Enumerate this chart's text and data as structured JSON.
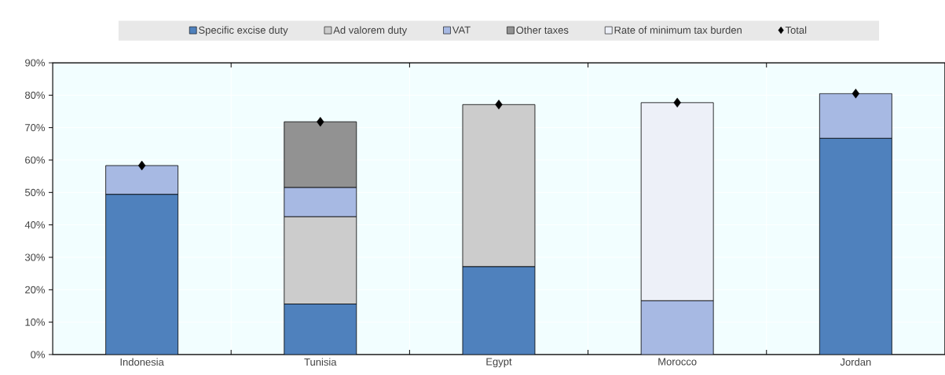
{
  "chart_data": {
    "type": "bar",
    "stacked": true,
    "categories": [
      "Indonesia",
      "Tunisia",
      "Egypt",
      "Morocco",
      "Jordan"
    ],
    "series": [
      {
        "name": "Specific excise duty",
        "color": "#4f81bd",
        "values": [
          49.4,
          15.6,
          27.1,
          null,
          66.7
        ]
      },
      {
        "name": "Ad valorem duty",
        "color": "#cccccc",
        "values": [
          null,
          26.9,
          50.0,
          null,
          null
        ]
      },
      {
        "name": "VAT",
        "color": "#a7b9e3",
        "values": [
          8.9,
          9.0,
          null,
          16.6,
          13.8
        ]
      },
      {
        "name": "Other taxes",
        "color": "#929292",
        "values": [
          null,
          20.3,
          null,
          null,
          null
        ]
      },
      {
        "name": "Rate of minimum tax burden",
        "color": "#edf0f8",
        "values": [
          null,
          null,
          null,
          61.1,
          null
        ]
      },
      {
        "name": "Total",
        "type": "scatter",
        "marker": "diamond",
        "color": "#000000",
        "values": [
          58.3,
          71.8,
          77.1,
          77.7,
          80.5
        ]
      }
    ],
    "ylim": [
      0,
      90
    ],
    "yticks": [
      {
        "value": 0,
        "label": "0%"
      },
      {
        "value": 10,
        "label": "10%"
      },
      {
        "value": 20,
        "label": "20%"
      },
      {
        "value": 30,
        "label": "30%"
      },
      {
        "value": 40,
        "label": "40%"
      },
      {
        "value": 50,
        "label": "50%"
      },
      {
        "value": 60,
        "label": "60%"
      },
      {
        "value": 70,
        "label": "70%"
      },
      {
        "value": 80,
        "label": "80%"
      },
      {
        "value": 90,
        "label": "90%"
      }
    ],
    "grid": true,
    "legend": "top"
  }
}
